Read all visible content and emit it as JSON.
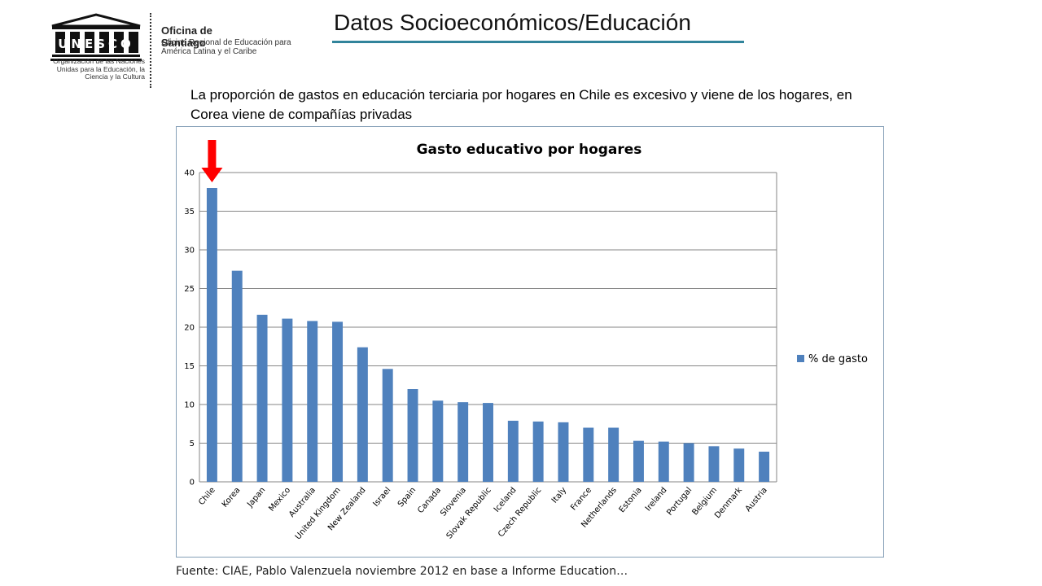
{
  "logo": {
    "seal_text": "UNESCO",
    "org_title": "Oficina de Santiago",
    "org_subtitle": "Oficina Regional de Educación para América Latina y el Caribe",
    "un_text": "Organización de las Naciones Unidas para la Educación, la Ciencia y la Cultura"
  },
  "slide": {
    "title": "Datos Socioeconómicos/Educación",
    "subtitle": "La proporción de gastos en educación terciaria por hogares en Chile es excesivo y viene de los hogares, en Corea viene de compañías privadas",
    "source": "Fuente: CIAE, Pablo Valenzuela noviembre 2012 en base a Informe Education…"
  },
  "chart_data": {
    "type": "bar",
    "title": "Gasto educativo por hogares",
    "categories": [
      "Chile",
      "Korea",
      "Japan",
      "Mexico",
      "Australia",
      "United Kingdom",
      "New Zealand",
      "Israel",
      "Spain",
      "Canada",
      "Slovenia",
      "Slovak Republic",
      "Iceland",
      "Czech Republic",
      "Italy",
      "France",
      "Netherlands",
      "Estonia",
      "Ireland",
      "Portugal",
      "Belgium",
      "Denmark",
      "Austria"
    ],
    "series": [
      {
        "name": "% de gasto",
        "values": [
          38.0,
          27.3,
          21.6,
          21.1,
          20.8,
          20.7,
          17.4,
          14.6,
          12.0,
          10.5,
          10.3,
          10.2,
          7.9,
          7.8,
          7.7,
          7.0,
          7.0,
          5.3,
          5.2,
          5.0,
          4.6,
          4.3,
          3.9
        ]
      }
    ],
    "ylim": [
      0,
      40
    ],
    "yticks": [
      0,
      5,
      10,
      15,
      20,
      25,
      30,
      35,
      40
    ],
    "grid": true,
    "legend_position": "right",
    "bar_color": "#4f81bd",
    "highlight": {
      "category": "Chile",
      "marker": "down-arrow",
      "color": "#ff0000"
    }
  }
}
